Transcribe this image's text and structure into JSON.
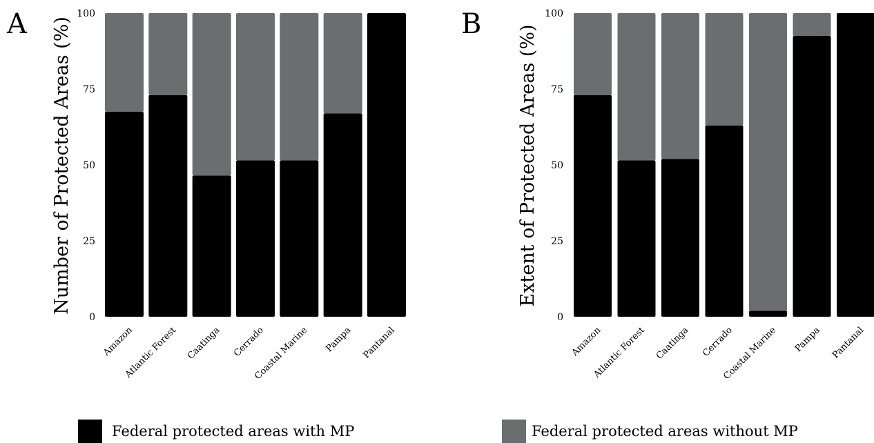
{
  "colors": {
    "with_mp": "#000000",
    "without_mp": "#6b6e6f"
  },
  "legend": {
    "position": "bottom",
    "items": [
      {
        "label": "Federal protected areas with MP",
        "color": "#000000"
      },
      {
        "label": "Federal protected areas without MP",
        "color": "#6b6e6f"
      }
    ]
  },
  "chart_data": [
    {
      "panel": "A",
      "type": "bar",
      "stacked": true,
      "title": "",
      "xlabel": "",
      "ylabel": "Number of Protected Areas (%)",
      "ylim": [
        0,
        100
      ],
      "yticks": [
        0,
        25,
        50,
        75,
        100
      ],
      "grid": false,
      "categories": [
        "Amazon",
        "Atlantic Forest",
        "Caatinga",
        "Cerrado",
        "Coastal Marine",
        "Pampa",
        "Pantanal"
      ],
      "series": [
        {
          "name": "Federal protected areas with MP",
          "values": [
            67.5,
            73,
            46.5,
            51.5,
            51.5,
            67,
            100
          ]
        },
        {
          "name": "Federal protected areas without MP",
          "values": [
            32.5,
            27,
            53.5,
            48.5,
            48.5,
            33,
            0
          ]
        }
      ]
    },
    {
      "panel": "B",
      "type": "bar",
      "stacked": true,
      "title": "",
      "xlabel": "",
      "ylabel": "Extent of Protected Areas (%)",
      "ylim": [
        0,
        100
      ],
      "yticks": [
        0,
        25,
        50,
        75,
        100
      ],
      "grid": false,
      "categories": [
        "Amazon",
        "Atlantic Forest",
        "Caatinga",
        "Cerrado",
        "Coastal Marine",
        "Pampa",
        "Pantanal"
      ],
      "series": [
        {
          "name": "Federal protected areas with MP",
          "values": [
            73,
            51.5,
            52,
            63,
            2,
            92.5,
            100
          ]
        },
        {
          "name": "Federal protected areas without MP",
          "values": [
            27,
            48.5,
            48,
            37,
            98,
            7.5,
            0
          ]
        }
      ]
    }
  ]
}
